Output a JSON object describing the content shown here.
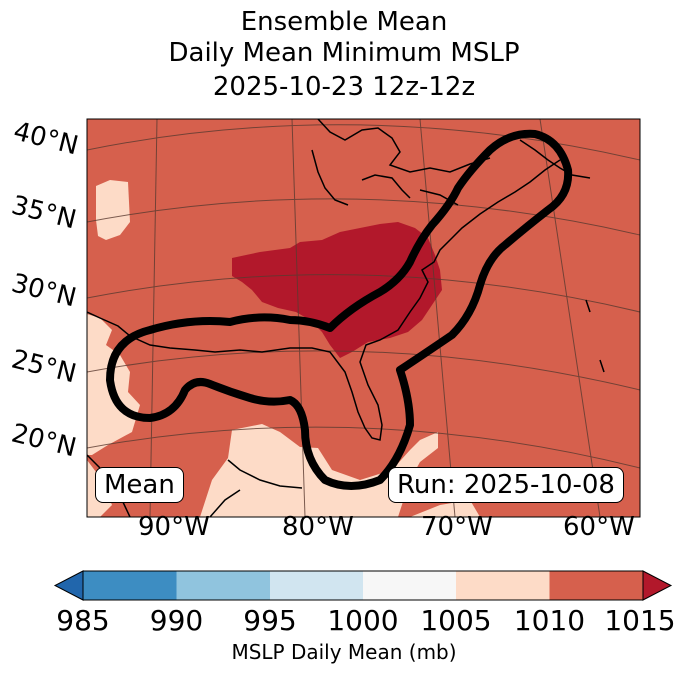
{
  "title_lines": [
    "Ensemble Mean",
    "Daily Mean Minimum MSLP",
    "2025-10-23 12z-12z"
  ],
  "lat_labels": [
    "40°N",
    "35°N",
    "30°N",
    "25°N",
    "20°N"
  ],
  "lon_labels": [
    "90°W",
    "80°W",
    "70°W",
    "60°W"
  ],
  "mean_box": "Mean",
  "run_box": "Run: 2025-10-08",
  "colorbar": {
    "label": "MSLP Daily Mean (mb)",
    "ticks": [
      "985",
      "990",
      "995",
      "1000",
      "1005",
      "1010",
      "1015"
    ],
    "colors": [
      "#2166ac",
      "#3d8dc2",
      "#90c4de",
      "#d1e5f0",
      "#f7f7f7",
      "#fddbc7",
      "#d6604d",
      "#b2182b"
    ]
  },
  "map_colors": {
    "band_1005_1010": "#fddbc7",
    "band_1010_1015": "#d6604d",
    "band_above_1015": "#b2182b",
    "coastline": "#000000",
    "gridline": "#5a3a30",
    "contour": "#000000"
  }
}
